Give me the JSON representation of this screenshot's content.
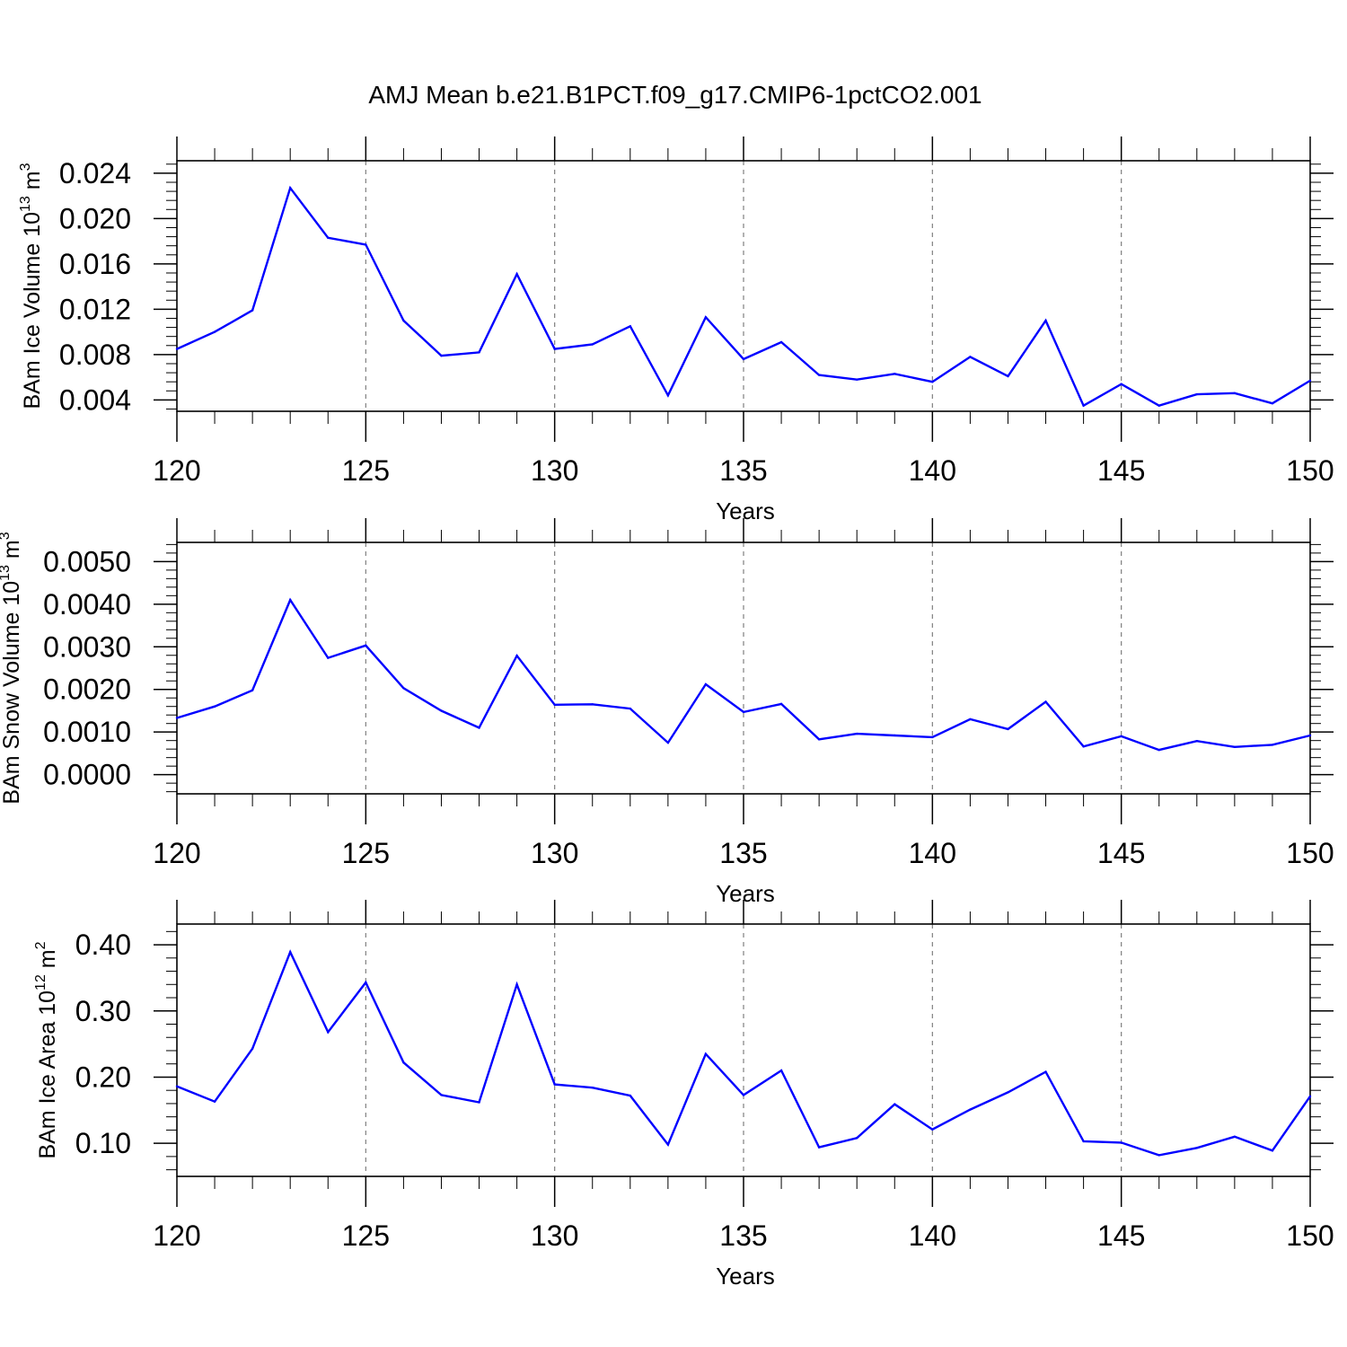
{
  "title": "AMJ Mean b.e21.B1PCT.f09_g17.CMIP6-1pctCO2.001",
  "colors": {
    "series": "#0000ff",
    "axis": "#000000",
    "grid": "#7f7f7f"
  },
  "chart_data": [
    {
      "type": "line",
      "ylabel": {
        "prefix": "BAm Ice Volume 10",
        "exponent": "13",
        "unit": " m",
        "unit_exponent": "3"
      },
      "xlabel": "Years",
      "xlim": [
        120,
        150
      ],
      "ylim": [
        0.003,
        0.0251
      ],
      "xticks": [
        120,
        125,
        130,
        135,
        140,
        145,
        150
      ],
      "xtick_labels": [
        "120",
        "125",
        "130",
        "135",
        "140",
        "145",
        "150"
      ],
      "yticks": [
        0.004,
        0.008,
        0.012,
        0.016,
        0.02,
        0.024
      ],
      "ytick_labels": [
        "0.004",
        "0.008",
        "0.012",
        "0.016",
        "0.020",
        "0.024"
      ],
      "grid": "vertical dashed at major x ticks",
      "x": [
        120,
        121,
        122,
        123,
        124,
        125,
        126,
        127,
        128,
        129,
        130,
        131,
        132,
        133,
        134,
        135,
        136,
        137,
        138,
        139,
        140,
        141,
        142,
        143,
        144,
        145,
        146,
        147,
        148,
        149,
        150
      ],
      "values": [
        0.0085,
        0.01,
        0.0119,
        0.0227,
        0.0183,
        0.0177,
        0.011,
        0.0079,
        0.0082,
        0.0151,
        0.0085,
        0.0089,
        0.0105,
        0.0044,
        0.0113,
        0.0076,
        0.0091,
        0.0062,
        0.0058,
        0.0063,
        0.0056,
        0.0078,
        0.0061,
        0.011,
        0.0035,
        0.0054,
        0.0035,
        0.0045,
        0.0046,
        0.0037,
        0.0057
      ]
    },
    {
      "type": "line",
      "ylabel": {
        "prefix": "BAm Snow Volume 10",
        "exponent": "13",
        "unit": " m",
        "unit_exponent": "3"
      },
      "xlabel": "Years",
      "xlim": [
        120,
        150
      ],
      "ylim": [
        -0.00045,
        0.00545
      ],
      "xticks": [
        120,
        125,
        130,
        135,
        140,
        145,
        150
      ],
      "xtick_labels": [
        "120",
        "125",
        "130",
        "135",
        "140",
        "145",
        "150"
      ],
      "yticks": [
        0.0,
        0.001,
        0.002,
        0.003,
        0.004,
        0.005
      ],
      "ytick_labels": [
        "0.0000",
        "0.0010",
        "0.0020",
        "0.0030",
        "0.0040",
        "0.0050"
      ],
      "grid": "vertical dashed at major x ticks",
      "x": [
        120,
        121,
        122,
        123,
        124,
        125,
        126,
        127,
        128,
        129,
        130,
        131,
        132,
        133,
        134,
        135,
        136,
        137,
        138,
        139,
        140,
        141,
        142,
        143,
        144,
        145,
        146,
        147,
        148,
        149,
        150
      ],
      "values": [
        0.00133,
        0.0016,
        0.00198,
        0.0041,
        0.00274,
        0.00303,
        0.00203,
        0.0015,
        0.0011,
        0.00279,
        0.00164,
        0.00165,
        0.00155,
        0.00075,
        0.00212,
        0.00147,
        0.00166,
        0.00083,
        0.00096,
        0.00092,
        0.00088,
        0.0013,
        0.00107,
        0.00171,
        0.00066,
        0.0009,
        0.00058,
        0.00079,
        0.00065,
        0.0007,
        0.00092
      ]
    },
    {
      "type": "line",
      "ylabel": {
        "prefix": "BAm Ice Area 10",
        "exponent": "12",
        "unit": " m",
        "unit_exponent": "2"
      },
      "xlabel": "Years",
      "xlim": [
        120,
        150
      ],
      "ylim": [
        0.05,
        0.4313
      ],
      "xticks": [
        120,
        125,
        130,
        135,
        140,
        145,
        150
      ],
      "xtick_labels": [
        "120",
        "125",
        "130",
        "135",
        "140",
        "145",
        "150"
      ],
      "yticks": [
        0.1,
        0.2,
        0.3,
        0.4
      ],
      "ytick_labels": [
        "0.10",
        "0.20",
        "0.30",
        "0.40"
      ],
      "grid": "vertical dashed at major x ticks",
      "x": [
        120,
        121,
        122,
        123,
        124,
        125,
        126,
        127,
        128,
        129,
        130,
        131,
        132,
        133,
        134,
        135,
        136,
        137,
        138,
        139,
        140,
        141,
        142,
        143,
        144,
        145,
        146,
        147,
        148,
        149,
        150
      ],
      "values": [
        0.186,
        0.163,
        0.243,
        0.389,
        0.268,
        0.343,
        0.222,
        0.173,
        0.162,
        0.34,
        0.189,
        0.184,
        0.172,
        0.098,
        0.235,
        0.173,
        0.21,
        0.094,
        0.108,
        0.159,
        0.121,
        0.151,
        0.177,
        0.208,
        0.103,
        0.101,
        0.082,
        0.093,
        0.11,
        0.089,
        0.171
      ]
    }
  ]
}
